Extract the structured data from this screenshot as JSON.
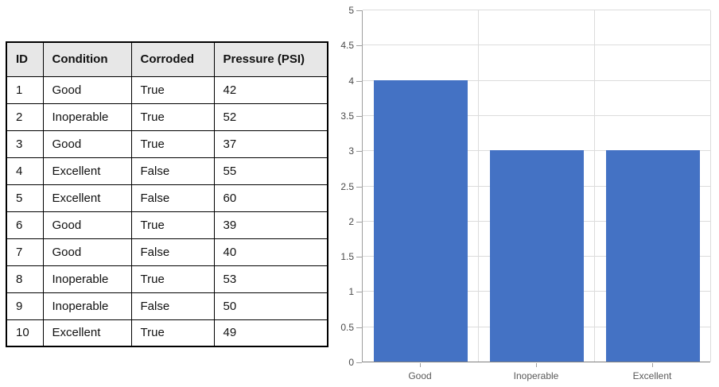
{
  "table": {
    "columns": [
      "ID",
      "Condition",
      "Corroded",
      "Pressure (PSI)"
    ],
    "rows": [
      [
        "1",
        "Good",
        "True",
        "42"
      ],
      [
        "2",
        "Inoperable",
        "True",
        "52"
      ],
      [
        "3",
        "Good",
        "True",
        "37"
      ],
      [
        "4",
        "Excellent",
        "False",
        "55"
      ],
      [
        "5",
        "Excellent",
        "False",
        "60"
      ],
      [
        "6",
        "Good",
        "True",
        "39"
      ],
      [
        "7",
        "Good",
        "False",
        "40"
      ],
      [
        "8",
        "Inoperable",
        "True",
        "53"
      ],
      [
        "9",
        "Inoperable",
        "False",
        "50"
      ],
      [
        "10",
        "Excellent",
        "True",
        "49"
      ]
    ],
    "header_bg": "#E7E7E7",
    "border_color": "#000000"
  },
  "chart_data": {
    "type": "bar",
    "categories": [
      "Good",
      "Inoperable",
      "Excellent"
    ],
    "values": [
      4,
      3,
      3
    ],
    "title": "",
    "xlabel": "",
    "ylabel": "",
    "ylim": [
      0,
      5
    ],
    "ytick_step": 0.5,
    "grid": "on",
    "legend": "none",
    "bar_color": "#4472C4",
    "gridline_color": "#DCDCDC",
    "axis_color": "#9e9e9e",
    "tick_label_color": "#4a4a4a",
    "category_label_color": "#595959"
  }
}
